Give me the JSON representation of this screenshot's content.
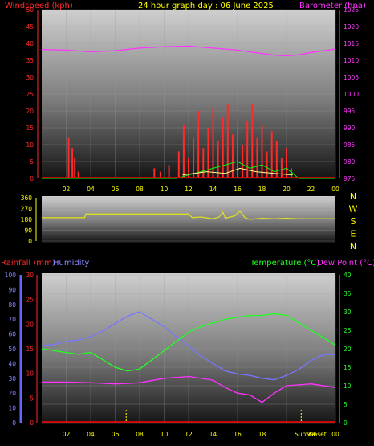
{
  "header": {
    "title": "24 hour graph day : 06 June 2025",
    "wind_label": "Windspeed (kph)",
    "baro_label": "Barometer (hpa)",
    "rain_label": "Rainfall (mm)",
    "humidity_label": "Humidity",
    "temp_label": "Temperature (°C)",
    "dew_label": "Dew Point (°C)"
  },
  "compass": [
    "N",
    "W",
    "S",
    "E",
    "N"
  ],
  "markers": {
    "sunrise": "Sunrise",
    "sunset": "Sunset"
  },
  "colors": {
    "wind": "#ff0000",
    "gust": "#ff2a2a",
    "avg": "#00ff00",
    "lull": "#ffff88",
    "baro": "#ff33ff",
    "dir": "#dddd22",
    "temp": "#22ff22",
    "dew": "#ff33ff",
    "hum": "#7777ff",
    "rain": "#ff0000",
    "axis": "#ffff00"
  },
  "chart_data": [
    {
      "type": "line",
      "title": "24 hour graph day : 06 June 2025",
      "x_ticks": [
        "02",
        "04",
        "06",
        "08",
        "10",
        "12",
        "14",
        "16",
        "18",
        "20",
        "22",
        "00"
      ],
      "ylim_left": [
        0,
        50
      ],
      "yticks_left": [
        "0",
        "5",
        "10",
        "15",
        "20",
        "25",
        "30",
        "35",
        "40",
        "45",
        "50"
      ],
      "ylim_right": [
        975,
        1025
      ],
      "yticks_right": [
        "975",
        "980",
        "985",
        "990",
        "995",
        "1000",
        "1005",
        "1010",
        "1015",
        "1020",
        "1025"
      ],
      "barometer": {
        "x": [
          0,
          2,
          4,
          6,
          8,
          10,
          12,
          14,
          16,
          18,
          19,
          20,
          21,
          22,
          24
        ],
        "y": [
          1013.2,
          1013,
          1012.5,
          1012.8,
          1013.6,
          1014,
          1014.2,
          1013.6,
          1013,
          1012,
          1011.5,
          1011.3,
          1011.6,
          1012.3,
          1013.3
        ]
      },
      "wind_bursts": [
        {
          "x": [
            2.2,
            2.5,
            2.7,
            3.0
          ],
          "y": [
            12,
            9,
            6,
            2
          ]
        },
        {
          "x": [
            9.2,
            9.7,
            10.4
          ],
          "y": [
            3,
            2,
            4
          ]
        },
        {
          "x": [
            11.2,
            11.6,
            12,
            12.4,
            12.8,
            13.2,
            13.6,
            14,
            14.4,
            14.8,
            15.2,
            15.6,
            16,
            16.4,
            16.8,
            17.2,
            17.6,
            18,
            18.4,
            18.8,
            19.2,
            19.6,
            20,
            20.4
          ],
          "y": [
            8,
            16,
            6,
            12,
            20,
            9,
            15,
            21,
            11,
            18,
            22,
            13,
            20,
            10,
            17,
            22,
            12,
            16,
            8,
            14,
            11,
            6,
            9,
            3
          ]
        }
      ],
      "wind_avg": {
        "x": [
          0,
          11,
          12,
          13,
          14,
          15,
          16,
          17,
          18,
          19,
          20,
          21,
          24
        ],
        "y": [
          0,
          0,
          1,
          2,
          3,
          4,
          5,
          3,
          4,
          2,
          3,
          0,
          0
        ]
      },
      "wind_lull": {
        "x": [
          11.5,
          13.5,
          15,
          16.2,
          17.5,
          19,
          20.5
        ],
        "y": [
          1,
          2,
          1.5,
          3,
          2,
          1.5,
          1
        ]
      }
    },
    {
      "type": "line",
      "ylim": [
        0,
        360
      ],
      "yticks": [
        "0",
        "90",
        "180",
        "270",
        "360"
      ],
      "wind_direction": {
        "x": [
          0,
          3.5,
          3.6,
          12,
          12.3,
          13,
          14,
          14.5,
          14.8,
          15,
          15.8,
          16.2,
          16.6,
          17,
          18,
          19,
          20,
          21,
          24
        ],
        "y": [
          195,
          195,
          225,
          225,
          195,
          200,
          185,
          200,
          240,
          190,
          210,
          250,
          195,
          180,
          190,
          185,
          190,
          185,
          185
        ]
      }
    },
    {
      "type": "line",
      "ylim_rain": [
        0,
        30
      ],
      "yticks_rain": [
        "0",
        "5",
        "10",
        "15",
        "20",
        "25",
        "30"
      ],
      "ylim_humidity": [
        0,
        100
      ],
      "yticks_humidity": [
        "0",
        "10",
        "20",
        "30",
        "40",
        "50",
        "60",
        "70",
        "80",
        "90",
        "100"
      ],
      "ylim_temp": [
        0,
        40
      ],
      "yticks_temp": [
        "0",
        "5",
        "10",
        "15",
        "20",
        "25",
        "30",
        "35",
        "40"
      ],
      "temperature": {
        "x": [
          0,
          1,
          2,
          3,
          4,
          5,
          6,
          7,
          8,
          9,
          10,
          11,
          12,
          13,
          14,
          15,
          16,
          17,
          18,
          19,
          20,
          21,
          22,
          23,
          24
        ],
        "y": [
          20,
          19.5,
          19,
          18.5,
          19,
          17,
          15,
          14,
          14.5,
          17,
          19.5,
          22,
          24.5,
          26,
          27,
          28,
          28.5,
          29,
          29,
          29.5,
          29,
          27,
          25,
          23,
          21
        ]
      },
      "dew_point": {
        "x": [
          0,
          2,
          4,
          6,
          8,
          10,
          12,
          14,
          15,
          16,
          17,
          18,
          19,
          20,
          22,
          24
        ],
        "y": [
          11,
          11,
          10.8,
          10.5,
          10.8,
          12,
          12.5,
          11.5,
          9.5,
          8,
          7.5,
          5.5,
          8,
          10,
          10.5,
          9.5
        ]
      },
      "humidity": {
        "x": [
          0,
          1,
          2,
          3,
          4,
          5,
          6,
          7,
          8,
          9,
          10,
          11,
          12,
          13,
          14,
          15,
          16,
          17,
          18,
          19,
          20,
          21,
          22,
          23,
          24
        ],
        "y": [
          52,
          53,
          55,
          56,
          58,
          62,
          67,
          72,
          75,
          70,
          65,
          58,
          52,
          45,
          40,
          35,
          33,
          32,
          30,
          29,
          32,
          36,
          42,
          46,
          46
        ]
      },
      "rainfall": {
        "x": [
          0,
          24
        ],
        "y": [
          0,
          0
        ]
      },
      "sunrise_hour": 6.9,
      "sunset_hour": 21.2
    }
  ]
}
